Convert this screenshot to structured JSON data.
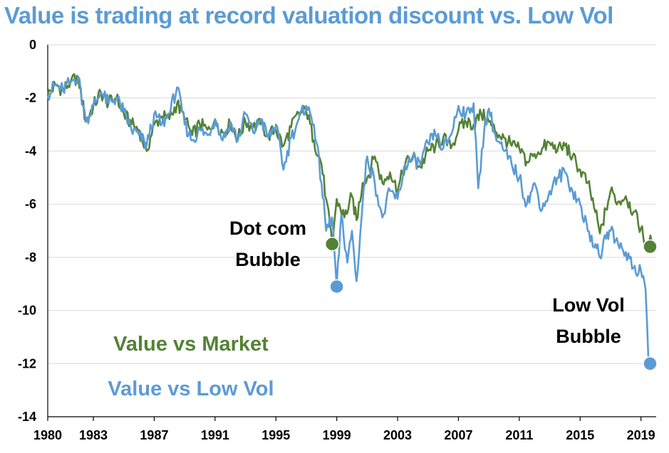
{
  "chart_data": {
    "type": "line",
    "title": "Value is trading at record valuation discount vs. Low Vol",
    "xlabel": "",
    "ylabel": "",
    "xlim": [
      1980,
      2020
    ],
    "ylim": [
      -14,
      0
    ],
    "x_ticks": [
      "1980",
      "1983",
      "1987",
      "1991",
      "1995",
      "1999",
      "2003",
      "2007",
      "2011",
      "2015",
      "2019"
    ],
    "y_ticks": [
      "0",
      "-2",
      "-4",
      "-6",
      "-8",
      "-10",
      "-12",
      "-14"
    ],
    "grid": true,
    "series": [
      {
        "name": "Value vs Market",
        "color": "#548235",
        "points": [
          [
            1980,
            -1.9
          ],
          [
            1980.5,
            -1.5
          ],
          [
            1981,
            -1.7
          ],
          [
            1981.5,
            -1.4
          ],
          [
            1982,
            -1.2
          ],
          [
            1982.5,
            -2.9
          ],
          [
            1983,
            -2.3
          ],
          [
            1983.5,
            -1.8
          ],
          [
            1984,
            -2.2
          ],
          [
            1984.5,
            -2.0
          ],
          [
            1985,
            -2.6
          ],
          [
            1985.5,
            -3.0
          ],
          [
            1986,
            -3.2
          ],
          [
            1986.5,
            -4.0
          ],
          [
            1987,
            -3.0
          ],
          [
            1987.5,
            -2.7
          ],
          [
            1988,
            -2.8
          ],
          [
            1988.5,
            -2.2
          ],
          [
            1989,
            -2.8
          ],
          [
            1989.5,
            -3.4
          ],
          [
            1990,
            -3.0
          ],
          [
            1990.5,
            -3.2
          ],
          [
            1991,
            -2.8
          ],
          [
            1991.5,
            -3.3
          ],
          [
            1992,
            -3.0
          ],
          [
            1992.5,
            -3.5
          ],
          [
            1993,
            -2.9
          ],
          [
            1993.5,
            -3.1
          ],
          [
            1994,
            -3.0
          ],
          [
            1994.5,
            -3.4
          ],
          [
            1995,
            -3.2
          ],
          [
            1995.5,
            -3.8
          ],
          [
            1996,
            -3.1
          ],
          [
            1996.5,
            -2.6
          ],
          [
            1997,
            -2.5
          ],
          [
            1997.5,
            -3.6
          ],
          [
            1998,
            -4.5
          ],
          [
            1998.3,
            -5.8
          ],
          [
            1998.7,
            -7.5
          ],
          [
            1999,
            -5.8
          ],
          [
            1999.5,
            -6.5
          ],
          [
            2000,
            -5.7
          ],
          [
            2000.3,
            -6.6
          ],
          [
            2000.7,
            -5.2
          ],
          [
            2001,
            -5.0
          ],
          [
            2001.5,
            -4.2
          ],
          [
            2002,
            -5.2
          ],
          [
            2002.5,
            -4.8
          ],
          [
            2003,
            -5.5
          ],
          [
            2003.5,
            -4.5
          ],
          [
            2004,
            -4.2
          ],
          [
            2004.5,
            -4.6
          ],
          [
            2005,
            -4.0
          ],
          [
            2005.5,
            -3.8
          ],
          [
            2006,
            -3.5
          ],
          [
            2006.5,
            -3.9
          ],
          [
            2007,
            -3.2
          ],
          [
            2007.5,
            -2.9
          ],
          [
            2008,
            -3.0
          ],
          [
            2008.5,
            -2.6
          ],
          [
            2009,
            -2.9
          ],
          [
            2009.5,
            -3.3
          ],
          [
            2010,
            -3.5
          ],
          [
            2010.5,
            -3.8
          ],
          [
            2011,
            -3.9
          ],
          [
            2011.5,
            -4.4
          ],
          [
            2012,
            -4.1
          ],
          [
            2012.5,
            -3.9
          ],
          [
            2013,
            -3.7
          ],
          [
            2013.5,
            -4.0
          ],
          [
            2014,
            -3.8
          ],
          [
            2014.5,
            -4.2
          ],
          [
            2015,
            -4.7
          ],
          [
            2015.5,
            -5.2
          ],
          [
            2016,
            -6.3
          ],
          [
            2016.3,
            -7.1
          ],
          [
            2016.7,
            -6.2
          ],
          [
            2017,
            -5.5
          ],
          [
            2017.5,
            -5.9
          ],
          [
            2018,
            -5.7
          ],
          [
            2018.5,
            -6.3
          ],
          [
            2019,
            -6.9
          ],
          [
            2019.3,
            -7.5
          ],
          [
            2019.7,
            -7.4
          ]
        ]
      },
      {
        "name": "Value vs Low Vol",
        "color": "#5b9bd5",
        "points": [
          [
            1980,
            -1.9
          ],
          [
            1980.5,
            -1.5
          ],
          [
            1981,
            -1.7
          ],
          [
            1981.5,
            -1.4
          ],
          [
            1982,
            -1.2
          ],
          [
            1982.5,
            -2.9
          ],
          [
            1983,
            -2.3
          ],
          [
            1983.5,
            -1.8
          ],
          [
            1984,
            -2.2
          ],
          [
            1984.5,
            -2.0
          ],
          [
            1985,
            -2.5
          ],
          [
            1985.5,
            -3.2
          ],
          [
            1986,
            -3.4
          ],
          [
            1986.5,
            -3.8
          ],
          [
            1987,
            -2.6
          ],
          [
            1987.5,
            -3.0
          ],
          [
            1988,
            -2.6
          ],
          [
            1988.5,
            -1.6
          ],
          [
            1989,
            -3.0
          ],
          [
            1989.5,
            -3.6
          ],
          [
            1990,
            -3.2
          ],
          [
            1990.5,
            -3.4
          ],
          [
            1991,
            -2.8
          ],
          [
            1991.5,
            -3.6
          ],
          [
            1992,
            -2.9
          ],
          [
            1992.5,
            -3.6
          ],
          [
            1993,
            -2.6
          ],
          [
            1993.5,
            -3.3
          ],
          [
            1994,
            -2.8
          ],
          [
            1994.5,
            -3.5
          ],
          [
            1995,
            -3.0
          ],
          [
            1995.5,
            -4.7
          ],
          [
            1996,
            -3.5
          ],
          [
            1996.5,
            -2.8
          ],
          [
            1997,
            -2.3
          ],
          [
            1997.5,
            -3.0
          ],
          [
            1998,
            -5.2
          ],
          [
            1998.3,
            -7.0
          ],
          [
            1998.7,
            -6.5
          ],
          [
            1999,
            -9.1
          ],
          [
            1999.3,
            -6.4
          ],
          [
            1999.7,
            -8.2
          ],
          [
            2000,
            -7.0
          ],
          [
            2000.3,
            -8.9
          ],
          [
            2000.7,
            -6.0
          ],
          [
            2001,
            -4.2
          ],
          [
            2001.5,
            -5.2
          ],
          [
            2002,
            -6.5
          ],
          [
            2002.5,
            -5.5
          ],
          [
            2003,
            -5.8
          ],
          [
            2003.5,
            -4.5
          ],
          [
            2004,
            -4.3
          ],
          [
            2004.5,
            -4.5
          ],
          [
            2005,
            -3.7
          ],
          [
            2005.5,
            -3.4
          ],
          [
            2006,
            -3.9
          ],
          [
            2006.5,
            -3.4
          ],
          [
            2007,
            -2.3
          ],
          [
            2007.5,
            -2.6
          ],
          [
            2008,
            -2.2
          ],
          [
            2008.3,
            -5.4
          ],
          [
            2008.7,
            -3.2
          ],
          [
            2009,
            -2.4
          ],
          [
            2009.5,
            -3.6
          ],
          [
            2010,
            -4.0
          ],
          [
            2010.5,
            -4.5
          ],
          [
            2011,
            -5.0
          ],
          [
            2011.5,
            -6.0
          ],
          [
            2012,
            -5.2
          ],
          [
            2012.5,
            -6.2
          ],
          [
            2013,
            -5.5
          ],
          [
            2013.5,
            -5.0
          ],
          [
            2014,
            -4.8
          ],
          [
            2014.5,
            -5.5
          ],
          [
            2015,
            -6.0
          ],
          [
            2015.5,
            -7.0
          ],
          [
            2016,
            -7.5
          ],
          [
            2016.3,
            -8.0
          ],
          [
            2016.7,
            -7.3
          ],
          [
            2017,
            -7.0
          ],
          [
            2017.5,
            -7.5
          ],
          [
            2018,
            -7.8
          ],
          [
            2018.5,
            -8.4
          ],
          [
            2019,
            -8.5
          ],
          [
            2019.3,
            -9.2
          ],
          [
            2019.5,
            -12.0
          ]
        ]
      }
    ],
    "markers": [
      {
        "series": "Value vs Market",
        "x": 1998.7,
        "y": -7.5,
        "color": "#548235"
      },
      {
        "series": "Value vs Low Vol",
        "x": 1999,
        "y": -9.1,
        "color": "#5b9bd5"
      },
      {
        "series": "Value vs Market",
        "x": 2019.6,
        "y": -7.6,
        "color": "#548235"
      },
      {
        "series": "Value vs Low Vol",
        "x": 2019.6,
        "y": -12.0,
        "color": "#5b9bd5"
      }
    ],
    "annotations": [
      {
        "key": "dotcom",
        "lines": [
          "Dot com",
          "Bubble"
        ]
      },
      {
        "key": "lowvol",
        "lines": [
          "Low Vol",
          "Bubble"
        ]
      }
    ],
    "legend": {
      "placement": "bottom-left inside",
      "entries": [
        {
          "label": "Value vs Market",
          "color": "#548235"
        },
        {
          "label": "Value vs Low Vol",
          "color": "#5b9bd5"
        }
      ]
    }
  }
}
